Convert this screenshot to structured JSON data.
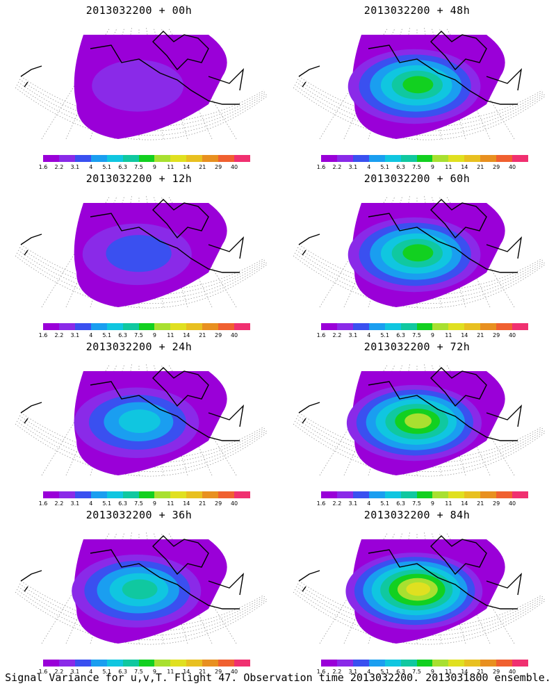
{
  "panels": [
    {
      "title": "2013032200 + 00h",
      "intensity": 0.15
    },
    {
      "title": "2013032200 + 48h",
      "intensity": 0.6
    },
    {
      "title": "2013032200 + 12h",
      "intensity": 0.3
    },
    {
      "title": "2013032200 + 60h",
      "intensity": 0.65
    },
    {
      "title": "2013032200 + 24h",
      "intensity": 0.45
    },
    {
      "title": "2013032200 + 72h",
      "intensity": 0.72
    },
    {
      "title": "2013032200 + 36h",
      "intensity": 0.5
    },
    {
      "title": "2013032200 + 84h",
      "intensity": 0.78
    }
  ],
  "colorbar": {
    "colors": [
      "#9a00d8",
      "#8a2ae8",
      "#3a50f0",
      "#1a9ef0",
      "#10c6e0",
      "#10c8a0",
      "#12d020",
      "#a8e030",
      "#e0e020",
      "#e8c020",
      "#e89020",
      "#f06030",
      "#f03070"
    ],
    "tick_labels": [
      "1.6",
      "2.2",
      "3.1",
      "4",
      "5.1",
      "6.3",
      "7.5",
      "9",
      "11",
      "14",
      "21",
      "29",
      "40"
    ]
  },
  "footer": "Signal Variance for u,v,T. Flight 47. Observation time 2013032200. 2013031800 ensemble."
}
